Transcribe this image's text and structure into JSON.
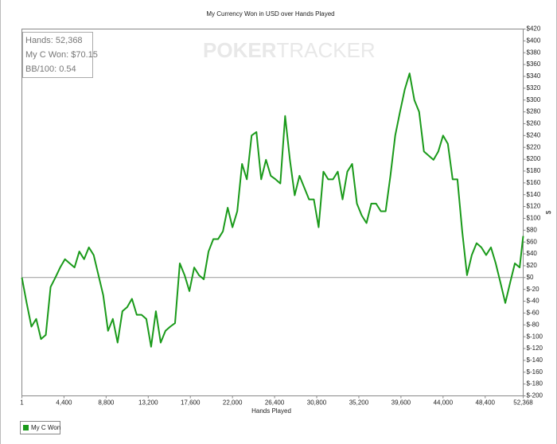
{
  "chart_data": {
    "type": "line",
    "title": "My Currency Won in USD over Hands Played",
    "x_label": "Hands Played",
    "y_label": "$",
    "watermark": [
      "POKER",
      "TRACKER"
    ],
    "annotations": [
      "Hands: 52,368",
      "My C Won: $70.15",
      "BB/100: 0.54"
    ],
    "xlim": [
      1,
      52368
    ],
    "xticks": [
      1,
      {
        "value": 4400,
        "label": "4,400"
      },
      {
        "value": 8800,
        "label": "8,800"
      },
      {
        "value": 13200,
        "label": "13,200"
      },
      {
        "value": 17600,
        "label": "17,600"
      },
      {
        "value": 22000,
        "label": "22,000"
      },
      {
        "value": 26400,
        "label": "26,400"
      },
      {
        "value": 30800,
        "label": "30,800"
      },
      {
        "value": 35200,
        "label": "35,200"
      },
      {
        "value": 39600,
        "label": "39,600"
      },
      {
        "value": 44000,
        "label": "44,000"
      },
      {
        "value": 48400,
        "label": "48,400"
      },
      {
        "value": 52368,
        "label": "52,368"
      }
    ],
    "ylim": [
      -200,
      420
    ],
    "yticks": [
      {
        "value": 420,
        "label": "$420"
      },
      {
        "value": 400,
        "label": "$400"
      },
      {
        "value": 380,
        "label": "$380"
      },
      {
        "value": 360,
        "label": "$360"
      },
      {
        "value": 340,
        "label": "$340"
      },
      {
        "value": 320,
        "label": "$320"
      },
      {
        "value": 300,
        "label": "$300"
      },
      {
        "value": 280,
        "label": "$280"
      },
      {
        "value": 260,
        "label": "$260"
      },
      {
        "value": 240,
        "label": "$240"
      },
      {
        "value": 220,
        "label": "$220"
      },
      {
        "value": 200,
        "label": "$200"
      },
      {
        "value": 180,
        "label": "$180"
      },
      {
        "value": 160,
        "label": "$160"
      },
      {
        "value": 140,
        "label": "$140"
      },
      {
        "value": 120,
        "label": "$120"
      },
      {
        "value": 100,
        "label": "$100"
      },
      {
        "value": 80,
        "label": "$80"
      },
      {
        "value": 60,
        "label": "$60"
      },
      {
        "value": 40,
        "label": "$40"
      },
      {
        "value": 20,
        "label": "$20"
      },
      {
        "value": 0,
        "label": "$0"
      },
      {
        "value": -20,
        "label": "$-20"
      },
      {
        "value": -40,
        "label": "$-40"
      },
      {
        "value": -60,
        "label": "$-60"
      },
      {
        "value": -80,
        "label": "$-80"
      },
      {
        "value": -100,
        "label": "$-100"
      },
      {
        "value": -120,
        "label": "$-120"
      },
      {
        "value": -140,
        "label": "$-140"
      },
      {
        "value": -160,
        "label": "$-160"
      },
      {
        "value": -180,
        "label": "$-180"
      },
      {
        "value": -200,
        "label": "$-200"
      }
    ],
    "x": [
      1,
      500,
      1000,
      1500,
      2000,
      2500,
      3000,
      3500,
      4000,
      4500,
      5000,
      5500,
      6000,
      6500,
      7000,
      7500,
      8000,
      8500,
      9000,
      9500,
      10000,
      10500,
      11000,
      11500,
      12000,
      12500,
      13000,
      13500,
      14000,
      14500,
      15000,
      15500,
      16000,
      16500,
      17000,
      17500,
      18000,
      18500,
      19000,
      19500,
      20000,
      20500,
      21000,
      21500,
      22000,
      22500,
      23000,
      23500,
      24000,
      24500,
      25000,
      25500,
      26000,
      26500,
      27000,
      27500,
      28000,
      28500,
      29000,
      29500,
      30000,
      30500,
      31000,
      31500,
      32000,
      32500,
      33000,
      33500,
      34000,
      34500,
      35000,
      35500,
      36000,
      36500,
      37000,
      37500,
      38000,
      38500,
      39000,
      39500,
      40000,
      40500,
      41000,
      41500,
      42000,
      42500,
      43000,
      43500,
      44000,
      44500,
      45000,
      45500,
      46000,
      46500,
      47000,
      47500,
      48000,
      48500,
      49000,
      49500,
      50000,
      50500,
      51000,
      51500,
      52000,
      52368
    ],
    "series": [
      {
        "name": "My C Won",
        "color": "#1a9a1a",
        "values": [
          0,
          -43,
          -83,
          -70,
          -104,
          -97,
          -16,
          0,
          17,
          31,
          24,
          17,
          44,
          31,
          51,
          38,
          4,
          -30,
          -90,
          -70,
          -110,
          -57,
          -50,
          -36,
          -63,
          -63,
          -70,
          -117,
          -57,
          -110,
          -90,
          -83,
          -77,
          24,
          4,
          -23,
          17,
          4,
          -3,
          44,
          65,
          65,
          78,
          118,
          85,
          112,
          192,
          166,
          240,
          246,
          166,
          199,
          172,
          166,
          159,
          273,
          199,
          139,
          172,
          152,
          132,
          132,
          85,
          179,
          166,
          166,
          179,
          132,
          179,
          192,
          125,
          105,
          92,
          125,
          125,
          112,
          112,
          172,
          240,
          280,
          318,
          345,
          300,
          280,
          213,
          206,
          199,
          213,
          240,
          226,
          166,
          166,
          78,
          4,
          38,
          58,
          51,
          38,
          51,
          24,
          -9,
          -43,
          -9,
          24,
          17,
          70.15
        ]
      }
    ]
  }
}
